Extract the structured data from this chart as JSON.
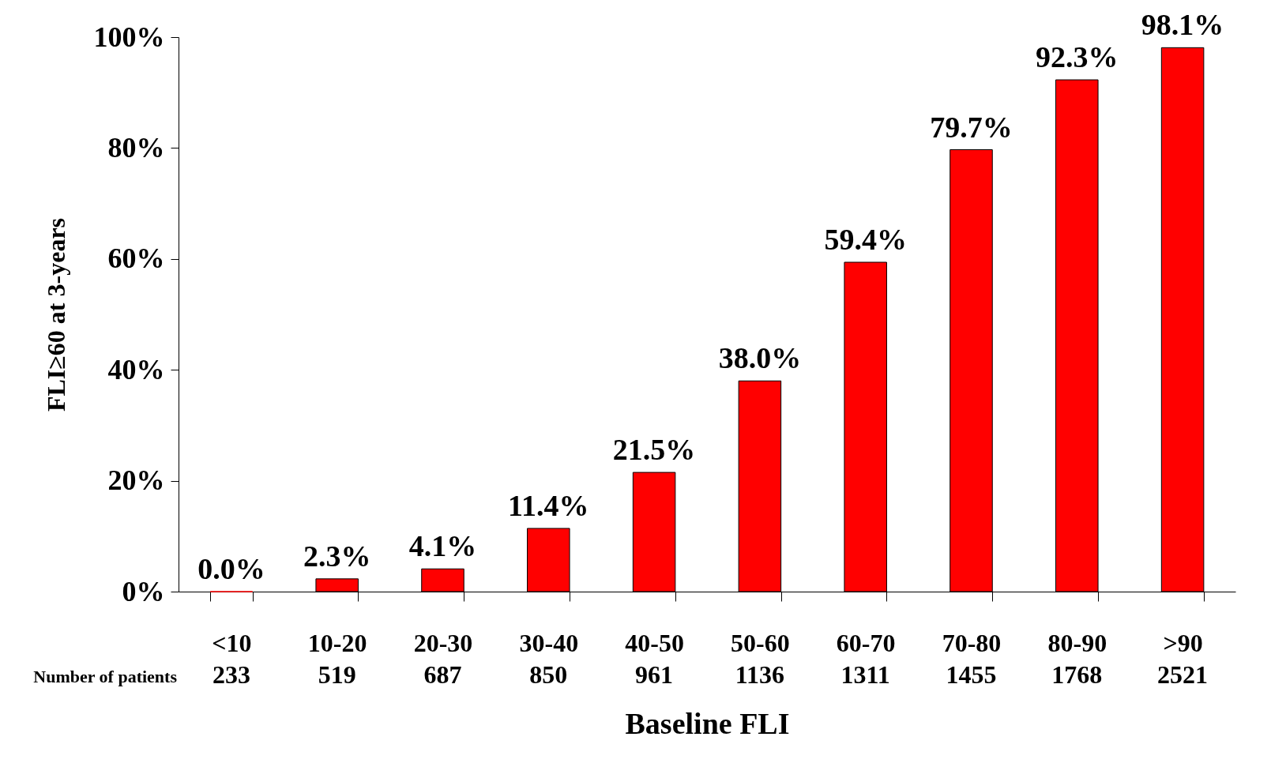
{
  "chart_data": {
    "type": "bar",
    "xlabel": "Baseline FLI",
    "ylabel": "FLI≥60 at 3-years",
    "categories": [
      "<10",
      "10-20",
      "20-30",
      "30-40",
      "40-50",
      "50-60",
      "60-70",
      "70-80",
      "80-90",
      ">90"
    ],
    "values": [
      0.0,
      2.3,
      4.1,
      11.4,
      21.5,
      38.0,
      59.4,
      79.7,
      92.3,
      98.1
    ],
    "value_labels": [
      "0.0%",
      "2.3%",
      "4.1%",
      "11.4%",
      "21.5%",
      "38.0%",
      "59.4%",
      "79.7%",
      "92.3%",
      "98.1%"
    ],
    "color": "#ff0000",
    "ylim": [
      0,
      100
    ],
    "yticks": [
      {
        "value": 0,
        "label": "0%"
      },
      {
        "value": 20,
        "label": "20%"
      },
      {
        "value": 40,
        "label": "40%"
      },
      {
        "value": 60,
        "label": "60%"
      },
      {
        "value": 80,
        "label": "80%"
      },
      {
        "value": 100,
        "label": "100%"
      }
    ],
    "grid": false,
    "annotations": [
      "Number of patients",
      "233",
      "519",
      "687",
      "850",
      "961",
      "1136",
      "1311",
      "1455",
      "1768",
      "2521"
    ]
  }
}
